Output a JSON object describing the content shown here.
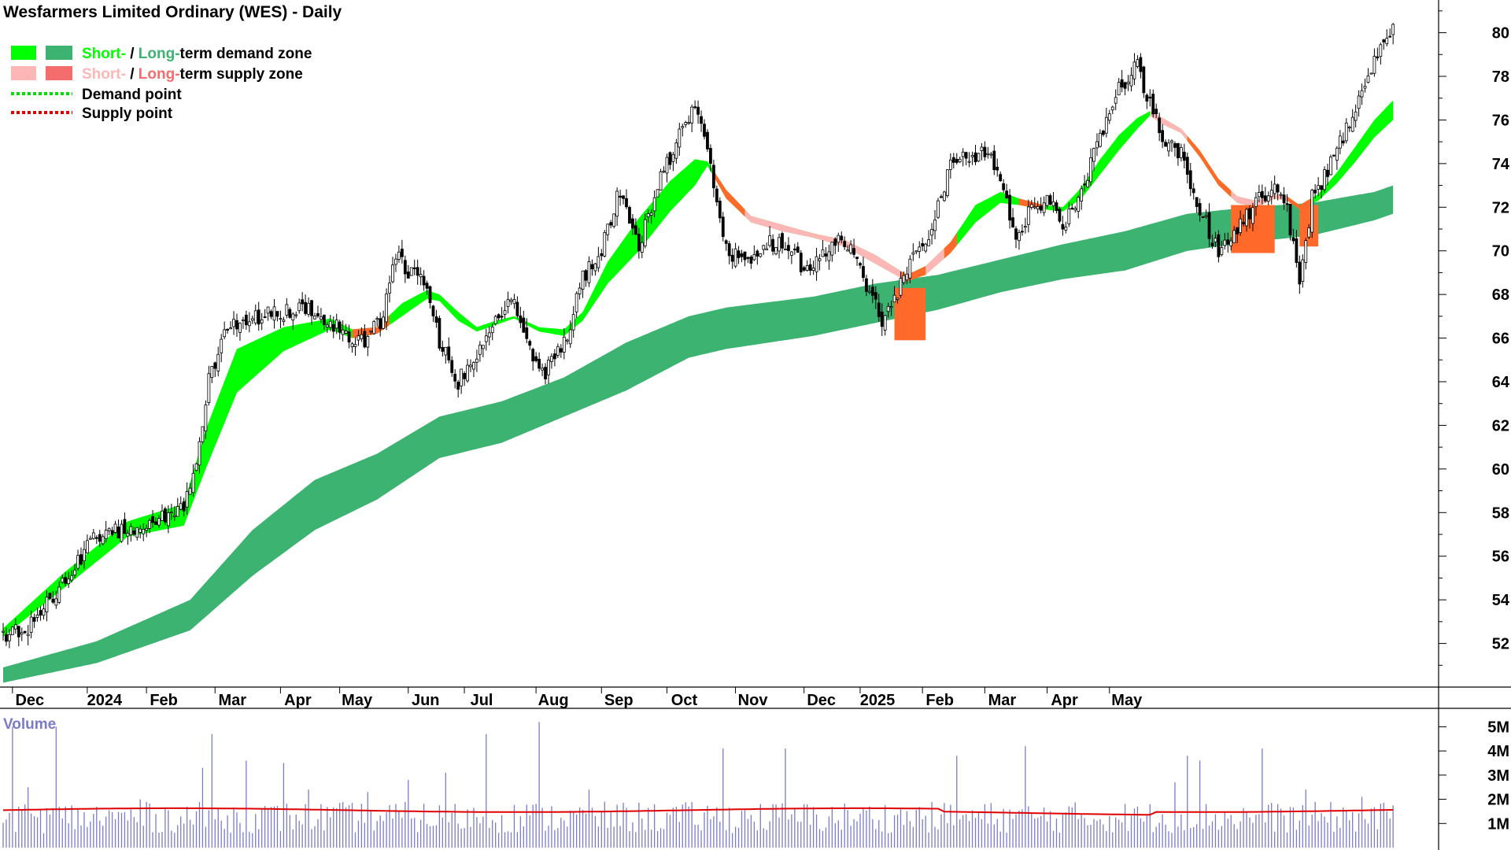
{
  "chart_title": "Wesfarmers Limited Ordinary (WES) - Daily",
  "legend": {
    "demand_zone": {
      "short": "Short-",
      "sep": " / ",
      "long": "Long-",
      "rest": "term demand zone"
    },
    "supply_zone": {
      "short": "Short-",
      "sep": " / ",
      "long": "Long-",
      "rest": "term supply zone"
    },
    "demand_point": "Demand point",
    "supply_point": "Supply point"
  },
  "colors": {
    "short_demand": "#00ff00",
    "long_demand": "#3cb371",
    "short_supply": "#ffb6b6",
    "long_supply": "#f46c6c",
    "supply_orange": "#ff6a2a",
    "demand_point": "#00dd00",
    "supply_point": "#e00000",
    "volume_bar": "#7b7bc8",
    "volume_ma": "#e00000",
    "candle": "#000000"
  },
  "chart_data": {
    "type": "candlestick",
    "title": "Wesfarmers Limited Ordinary (WES) - Daily",
    "ylim": [
      50,
      81.5
    ],
    "y_ticks": [
      "52",
      "54",
      "56",
      "58",
      "60",
      "62",
      "64",
      "66",
      "68",
      "70",
      "72",
      "74",
      "76",
      "78",
      "80"
    ],
    "x_ticks": [
      "Dec",
      "2024",
      "Feb",
      "Mar",
      "Apr",
      "May",
      "Jun",
      "Jul",
      "Aug",
      "Sep",
      "Oct",
      "Nov",
      "Dec",
      "2025",
      "Feb",
      "Mar",
      "Apr",
      "May"
    ],
    "close_anchors": [
      [
        0,
        52.4
      ],
      [
        8,
        52.8
      ],
      [
        18,
        54.6
      ],
      [
        30,
        57.0
      ],
      [
        42,
        57.3
      ],
      [
        52,
        57.8
      ],
      [
        58,
        58.2
      ],
      [
        62,
        60.2
      ],
      [
        66,
        64.0
      ],
      [
        72,
        66.5
      ],
      [
        80,
        66.9
      ],
      [
        90,
        67.2
      ],
      [
        100,
        67.4
      ],
      [
        108,
        66.3
      ],
      [
        116,
        65.8
      ],
      [
        122,
        67.0
      ],
      [
        126,
        69.8
      ],
      [
        130,
        69.0
      ],
      [
        136,
        68.5
      ],
      [
        140,
        65.8
      ],
      [
        146,
        64.0
      ],
      [
        152,
        65.4
      ],
      [
        158,
        67.2
      ],
      [
        164,
        67.5
      ],
      [
        168,
        65.8
      ],
      [
        174,
        64.4
      ],
      [
        180,
        65.7
      ],
      [
        186,
        68.8
      ],
      [
        192,
        70.0
      ],
      [
        198,
        72.8
      ],
      [
        204,
        70.2
      ],
      [
        210,
        73.0
      ],
      [
        216,
        75.0
      ],
      [
        222,
        76.6
      ],
      [
        227,
        73.8
      ],
      [
        232,
        70.0
      ],
      [
        238,
        69.4
      ],
      [
        244,
        70.2
      ],
      [
        250,
        70.5
      ],
      [
        256,
        69.4
      ],
      [
        262,
        69.6
      ],
      [
        266,
        70.6
      ],
      [
        272,
        69.9
      ],
      [
        276,
        68.7
      ],
      [
        282,
        66.9
      ],
      [
        288,
        68.4
      ],
      [
        292,
        69.8
      ],
      [
        298,
        71.0
      ],
      [
        304,
        73.8
      ],
      [
        310,
        74.3
      ],
      [
        316,
        74.6
      ],
      [
        320,
        73.3
      ],
      [
        325,
        70.8
      ],
      [
        330,
        71.9
      ],
      [
        336,
        72.4
      ],
      [
        340,
        71.2
      ],
      [
        346,
        72.6
      ],
      [
        352,
        75.2
      ],
      [
        358,
        77.4
      ],
      [
        364,
        78.5
      ],
      [
        368,
        76.7
      ],
      [
        372,
        75.3
      ],
      [
        378,
        74.4
      ],
      [
        384,
        72.0
      ],
      [
        390,
        69.9
      ],
      [
        396,
        71.0
      ],
      [
        402,
        72.2
      ],
      [
        408,
        73.1
      ],
      [
        412,
        71.8
      ],
      [
        416,
        68.6
      ],
      [
        420,
        72.4
      ],
      [
        426,
        74.0
      ],
      [
        432,
        75.9
      ],
      [
        438,
        78.2
      ],
      [
        443,
        79.8
      ],
      [
        446,
        80.0
      ]
    ],
    "short_zone_anchors": [
      [
        0,
        52.3,
        52.7
      ],
      [
        20,
        54.6,
        55.3
      ],
      [
        40,
        56.9,
        57.6
      ],
      [
        58,
        57.4,
        58.4
      ],
      [
        65,
        60.0,
        61.8
      ],
      [
        75,
        63.5,
        65.5
      ],
      [
        90,
        65.4,
        66.5
      ],
      [
        105,
        66.4,
        66.9
      ],
      [
        112,
        66.0,
        66.4
      ],
      [
        120,
        66.2,
        66.5
      ],
      [
        128,
        67.0,
        67.6
      ],
      [
        136,
        67.8,
        68.2
      ],
      [
        140,
        67.7,
        68.0
      ],
      [
        146,
        66.8,
        67.2
      ],
      [
        152,
        66.3,
        66.5
      ],
      [
        158,
        66.6,
        66.8
      ],
      [
        164,
        66.9,
        67.0
      ],
      [
        172,
        66.3,
        66.5
      ],
      [
        180,
        66.1,
        66.4
      ],
      [
        186,
        66.8,
        67.2
      ],
      [
        194,
        68.5,
        69.5
      ],
      [
        204,
        70.0,
        71.5
      ],
      [
        214,
        71.8,
        73.2
      ],
      [
        222,
        73.0,
        74.2
      ],
      [
        226,
        73.9,
        74.1
      ],
      [
        232,
        72.4,
        72.8
      ],
      [
        240,
        71.3,
        71.6
      ],
      [
        250,
        70.9,
        71.2
      ],
      [
        260,
        70.6,
        70.8
      ],
      [
        270,
        70.2,
        70.5
      ],
      [
        280,
        69.4,
        69.8
      ],
      [
        290,
        68.6,
        68.9
      ],
      [
        296,
        68.9,
        69.3
      ],
      [
        304,
        69.9,
        70.4
      ],
      [
        312,
        71.3,
        72.1
      ],
      [
        320,
        72.2,
        72.7
      ],
      [
        326,
        72.1,
        72.4
      ],
      [
        334,
        71.9,
        72.1
      ],
      [
        340,
        71.8,
        72.0
      ],
      [
        346,
        72.4,
        72.9
      ],
      [
        352,
        73.5,
        74.2
      ],
      [
        358,
        74.6,
        75.3
      ],
      [
        364,
        75.6,
        76.1
      ],
      [
        368,
        76.2,
        76.4
      ],
      [
        372,
        75.8,
        76.1
      ],
      [
        378,
        75.4,
        75.6
      ],
      [
        384,
        74.3,
        74.6
      ],
      [
        390,
        73.0,
        73.3
      ],
      [
        396,
        72.2,
        72.5
      ],
      [
        402,
        72.0,
        72.3
      ],
      [
        408,
        72.4,
        72.6
      ],
      [
        412,
        72.3,
        72.5
      ],
      [
        416,
        71.9,
        72.1
      ],
      [
        422,
        72.3,
        72.6
      ],
      [
        428,
        73.1,
        73.6
      ],
      [
        434,
        74.1,
        74.8
      ],
      [
        440,
        75.2,
        76.0
      ],
      [
        446,
        76.0,
        76.9
      ]
    ],
    "long_zone_anchors": [
      [
        0,
        50.2,
        50.9
      ],
      [
        30,
        51.1,
        52.1
      ],
      [
        60,
        52.6,
        54.0
      ],
      [
        80,
        55.1,
        57.2
      ],
      [
        100,
        57.2,
        59.5
      ],
      [
        120,
        58.6,
        60.7
      ],
      [
        140,
        60.5,
        62.4
      ],
      [
        160,
        61.2,
        63.1
      ],
      [
        180,
        62.4,
        64.2
      ],
      [
        200,
        63.6,
        65.8
      ],
      [
        220,
        65.1,
        67.0
      ],
      [
        232,
        65.5,
        67.4
      ],
      [
        260,
        66.1,
        67.9
      ],
      [
        280,
        66.7,
        68.5
      ],
      [
        300,
        67.3,
        68.9
      ],
      [
        320,
        68.1,
        69.6
      ],
      [
        340,
        68.7,
        70.3
      ],
      [
        360,
        69.1,
        70.9
      ],
      [
        380,
        70.0,
        71.7
      ],
      [
        400,
        70.4,
        72.0
      ],
      [
        420,
        70.7,
        72.2
      ],
      [
        440,
        71.4,
        72.7
      ],
      [
        446,
        71.7,
        73.0
      ]
    ],
    "supply_orange_intervals": [
      [
        112,
        124
      ],
      [
        228,
        238
      ],
      [
        288,
        296
      ],
      [
        302,
        306
      ],
      [
        326,
        334
      ],
      [
        380,
        394
      ],
      [
        412,
        420
      ]
    ],
    "supply_pink_intervals": [
      [
        238,
        288
      ],
      [
        296,
        302
      ],
      [
        368,
        380
      ],
      [
        394,
        412
      ]
    ],
    "long_supply_blocks": [
      [
        286,
        296,
        65.9,
        68.3
      ],
      [
        394,
        408,
        69.9,
        72.1
      ],
      [
        416,
        422,
        70.2,
        72.1
      ]
    ],
    "volume": {
      "label": "Volume",
      "y_ticks": [
        "1M",
        "2M",
        "3M",
        "4M",
        "5M"
      ],
      "ylim": [
        0,
        5.6
      ],
      "ma_level": 1.55,
      "spikes": [
        [
          3,
          5.0
        ],
        [
          8,
          2.5
        ],
        [
          17,
          5.0
        ],
        [
          44,
          2.0
        ],
        [
          64,
          3.3
        ],
        [
          67,
          4.7
        ],
        [
          78,
          3.6
        ],
        [
          90,
          3.5
        ],
        [
          98,
          2.4
        ],
        [
          117,
          2.3
        ],
        [
          130,
          2.8
        ],
        [
          142,
          3.1
        ],
        [
          155,
          4.7
        ],
        [
          172,
          5.2
        ],
        [
          188,
          2.4
        ],
        [
          231,
          4.1
        ],
        [
          251,
          4.1
        ],
        [
          306,
          3.8
        ],
        [
          328,
          4.2
        ],
        [
          376,
          2.7
        ],
        [
          380,
          3.8
        ],
        [
          384,
          3.6
        ],
        [
          404,
          4.1
        ],
        [
          418,
          2.4
        ],
        [
          436,
          2.1
        ]
      ]
    }
  }
}
